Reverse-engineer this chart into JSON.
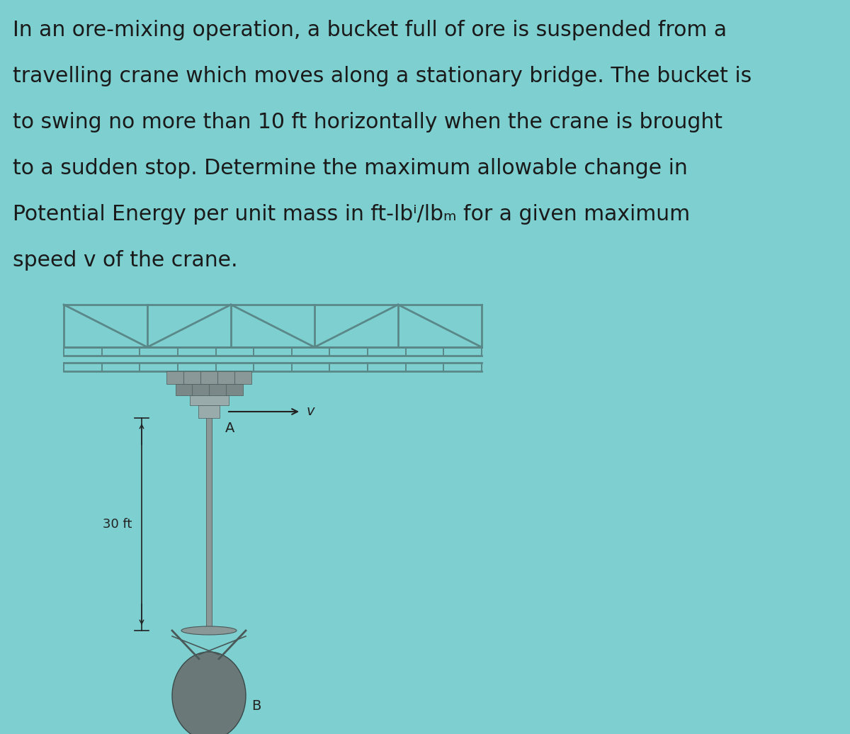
{
  "background_color": "#7ecfd0",
  "text_color": "#1a1a1a",
  "problem_text_lines": [
    "In an ore-mixing operation, a bucket full of ore is suspended from a",
    "travelling crane which moves along a stationary bridge. The bucket is",
    "to swing no more than 10 ft horizontally when the crane is brought",
    "to a sudden stop. Determine the maximum allowable change in",
    "Potential Energy per unit mass in ft-lbⁱ/lbₘ for a given maximum",
    "speed v of the crane."
  ],
  "label_30ft": "30 ft",
  "label_A": "A",
  "label_B": "B",
  "label_v": "v",
  "truss_color": "#5a8888",
  "crane_color": "#8a9898",
  "dim_color": "#222222",
  "text_fontsize": 21.5,
  "label_fontsize": 13,
  "fig_width": 12.0,
  "fig_height": 10.36
}
